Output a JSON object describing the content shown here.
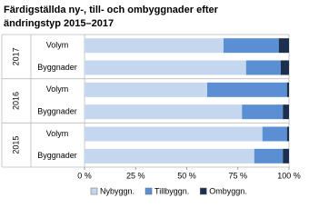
{
  "chart_data": {
    "type": "stacked-barh",
    "title": [
      "Färdigställda ny-, till- och ombyggnader efter",
      "ändringstyp 2015–2017"
    ],
    "groups": [
      "2017",
      "2016",
      "2015"
    ],
    "categories": [
      "Volym",
      "Byggnader",
      "Volym",
      "Byggnader",
      "Volym",
      "Byggnader"
    ],
    "series": [
      {
        "name": "Nybyggn.",
        "color": "#c5d7ef",
        "values": [
          68,
          79,
          60,
          77,
          87,
          83
        ]
      },
      {
        "name": "Tillbyggn.",
        "color": "#5a8fd3",
        "values": [
          27,
          17,
          39,
          20,
          12,
          14
        ]
      },
      {
        "name": "Ombyggn.",
        "color": "#1c2f4f",
        "values": [
          5,
          4,
          1,
          3,
          1,
          3
        ]
      }
    ],
    "xlim": [
      0,
      100
    ],
    "xticks": [
      {
        "value": 0,
        "label": "0 %"
      },
      {
        "value": 25,
        "label": "25 %"
      },
      {
        "value": 50,
        "label": "50 %"
      },
      {
        "value": 75,
        "label": "75 %"
      },
      {
        "value": 100,
        "label": "100 %"
      }
    ],
    "legend": "bottom"
  }
}
